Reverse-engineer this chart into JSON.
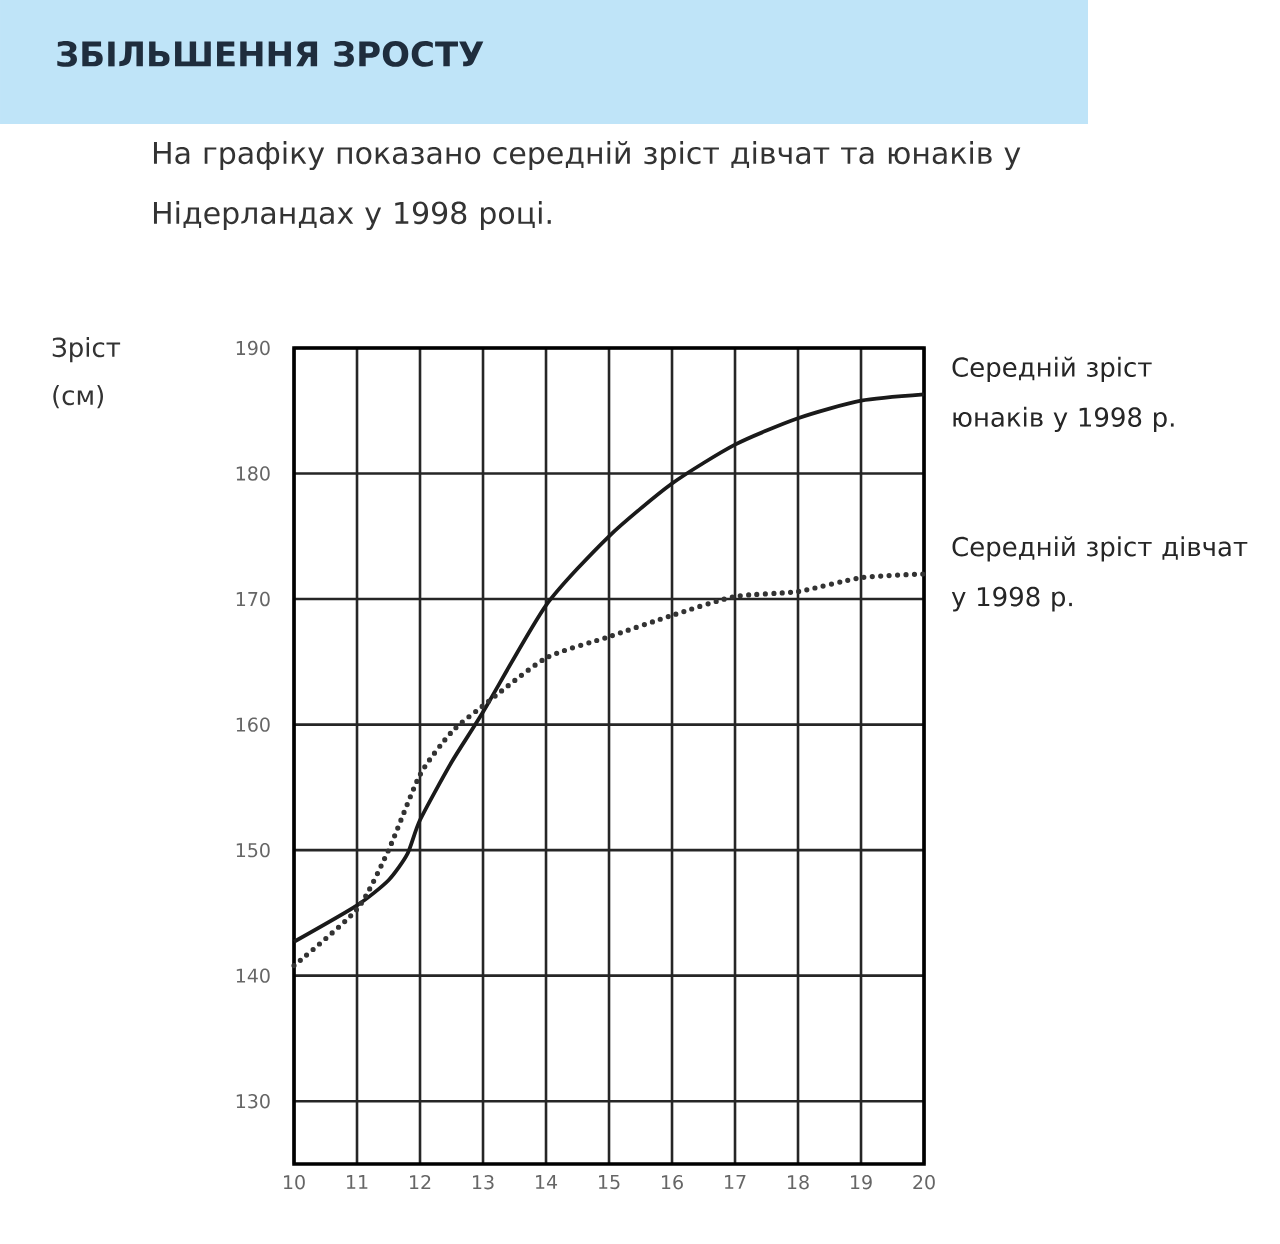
{
  "chart_data": {
    "type": "line",
    "title": "ЗБІЛЬШЕННЯ ЗРОСТУ",
    "subtitle": "На графіку показано середній зріст дівчат та юнаків у Нідерландах у 1998 році.",
    "ylabel": "Зріст (см)",
    "series": [
      {
        "name": "Середній зріст юнаків у 1998 р.",
        "color": "#1a1a1a",
        "line_style": "solid",
        "x": [
          10,
          11,
          11.5,
          11.8,
          12,
          12.5,
          13,
          14,
          15,
          16,
          17,
          18,
          19,
          20
        ],
        "values": [
          142.7,
          145.6,
          147.6,
          149.7,
          152.4,
          157,
          161,
          169.5,
          175,
          179.2,
          182.3,
          184.4,
          185.8,
          186.3
        ]
      },
      {
        "name": "Середній зріст дівчат у 1998 р.",
        "color": "#333333",
        "line_style": "dotted",
        "x": [
          10,
          11,
          11.5,
          12,
          12.5,
          13,
          14,
          15,
          16,
          17,
          18,
          19,
          20
        ],
        "values": [
          140.8,
          145.3,
          150,
          156,
          159.4,
          161.5,
          165.3,
          167,
          168.7,
          170.2,
          170.6,
          171.7,
          172
        ]
      }
    ],
    "xlim": [
      10,
      20
    ],
    "ylim": [
      125,
      190
    ],
    "xticks": [
      10,
      11,
      12,
      13,
      14,
      15,
      16,
      17,
      18,
      19,
      20
    ],
    "yticks": [
      130,
      140,
      150,
      160,
      170,
      180,
      190
    ],
    "grid": true,
    "legend": false,
    "marker": "none"
  }
}
